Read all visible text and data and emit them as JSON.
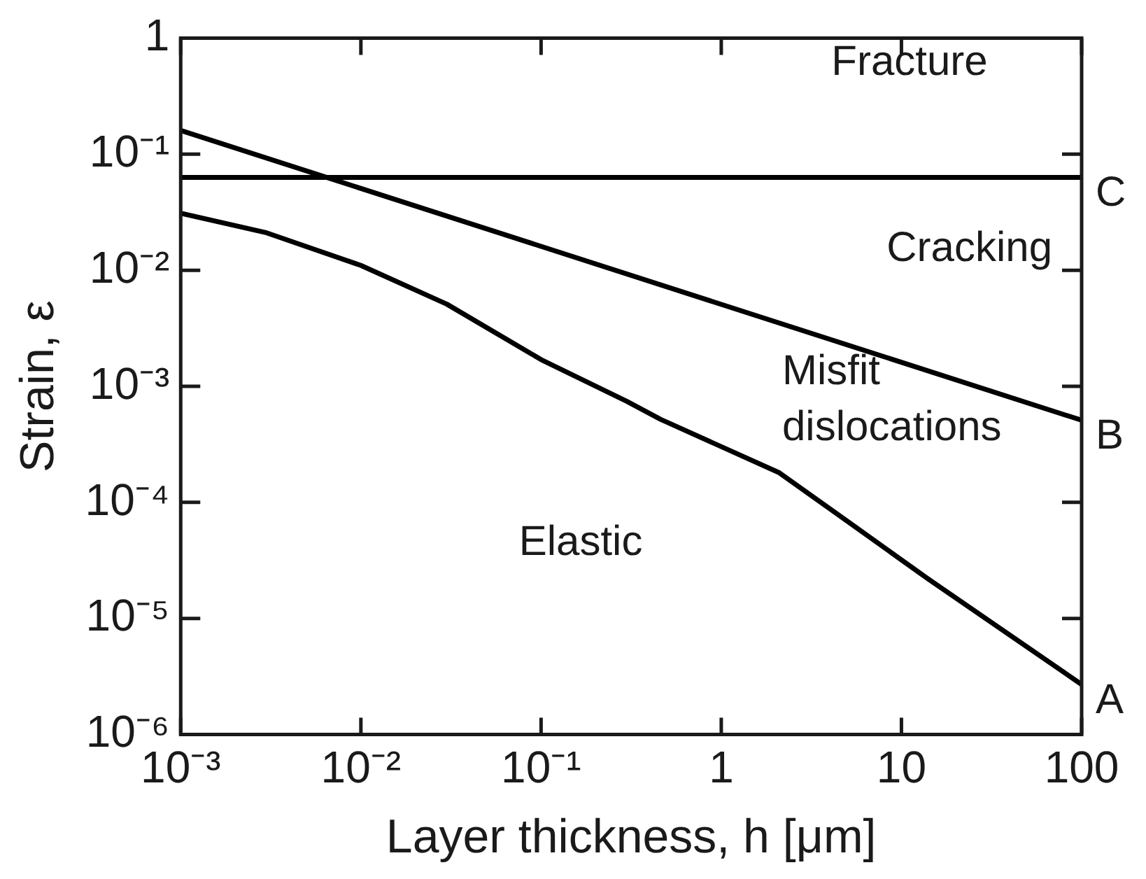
{
  "chart_data": {
    "type": "line",
    "xlabel": "Layer thickness, h [μm]",
    "ylabel": "Strain, ε",
    "log": "xy",
    "grid": false,
    "legend": false,
    "marker": "none",
    "line_style": "solid",
    "xlim": [
      0.001,
      100
    ],
    "ylim": [
      1e-06,
      1
    ],
    "xticks": [
      {
        "value": 0.001,
        "label": "10⁻³"
      },
      {
        "value": 0.01,
        "label": "10⁻²"
      },
      {
        "value": 0.1,
        "label": "10⁻¹"
      },
      1,
      10,
      100
    ],
    "yticks": [
      {
        "value": 1e-06,
        "label": "10⁻⁶"
      },
      {
        "value": 1e-05,
        "label": "10⁻⁵"
      },
      {
        "value": 0.0001,
        "label": "10⁻⁴"
      },
      {
        "value": 0.001,
        "label": "10⁻³"
      },
      {
        "value": 0.01,
        "label": "10⁻²"
      },
      {
        "value": 0.1,
        "label": "10⁻¹"
      },
      1
    ],
    "series": [
      {
        "name": "A",
        "color": "#000000",
        "x": [
          0.001,
          0.003,
          0.01,
          0.03,
          0.1,
          0.3,
          0.46,
          2.1,
          5,
          14,
          100
        ],
        "values": [
          0.031,
          0.021,
          0.011,
          0.0051,
          0.0017,
          0.00074,
          0.00052,
          0.00018,
          6.9e-05,
          2.2e-05,
          2.7e-06
        ]
      },
      {
        "name": "B",
        "color": "#000000",
        "x": [
          0.001,
          100
        ],
        "values": [
          0.16,
          0.00051
        ]
      },
      {
        "name": "C",
        "color": "#000000",
        "x": [
          0.001,
          100
        ],
        "values": [
          0.063,
          0.063
        ]
      }
    ],
    "annotations": [
      "Fracture",
      "Cracking",
      "Misfit dislocations",
      "Elastic"
    ]
  }
}
